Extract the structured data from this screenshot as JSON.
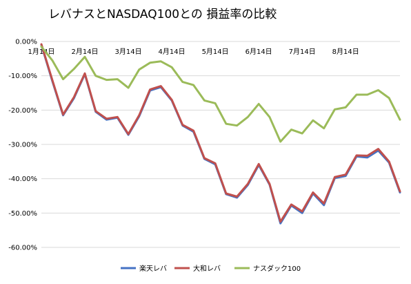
{
  "chart_data": {
    "type": "line",
    "title": "レバナスとNASDAQ100との 損益率の比較",
    "xlabel": "",
    "ylabel": "",
    "ylim": [
      -0.6,
      0
    ],
    "yticks": [
      0,
      -0.1,
      -0.2,
      -0.3,
      -0.4,
      -0.5,
      -0.6
    ],
    "ytick_labels": [
      "0.00%",
      "-10.00%",
      "-20.00%",
      "-30.00%",
      "-40.00%",
      "-50.00%",
      "-60.00%"
    ],
    "x_tick_labels": [
      "1月14日",
      "2月14日",
      "3月14日",
      "4月14日",
      "5月14日",
      "6月14日",
      "7月14日",
      "8月14日"
    ],
    "x_tick_index": [
      0,
      4,
      8,
      12,
      16,
      20,
      24,
      28
    ],
    "grid": true,
    "legend_position": "bottom",
    "series": [
      {
        "name": "楽天レバ",
        "color": "#4472C4",
        "values": [
          -0.01,
          -0.115,
          -0.215,
          -0.165,
          -0.095,
          -0.205,
          -0.228,
          -0.222,
          -0.272,
          -0.218,
          -0.143,
          -0.133,
          -0.172,
          -0.245,
          -0.263,
          -0.342,
          -0.358,
          -0.445,
          -0.455,
          -0.418,
          -0.36,
          -0.417,
          -0.53,
          -0.478,
          -0.5,
          -0.443,
          -0.477,
          -0.398,
          -0.392,
          -0.335,
          -0.338,
          -0.318,
          -0.353,
          -0.44
        ]
      },
      {
        "name": "大和レバ",
        "color": "#C0504D",
        "values": [
          -0.008,
          -0.112,
          -0.213,
          -0.162,
          -0.093,
          -0.203,
          -0.225,
          -0.22,
          -0.27,
          -0.215,
          -0.14,
          -0.13,
          -0.17,
          -0.243,
          -0.26,
          -0.34,
          -0.355,
          -0.443,
          -0.452,
          -0.415,
          -0.357,
          -0.415,
          -0.525,
          -0.475,
          -0.495,
          -0.44,
          -0.472,
          -0.395,
          -0.388,
          -0.332,
          -0.333,
          -0.313,
          -0.35,
          -0.437
        ]
      },
      {
        "name": "ナスダック100",
        "color": "#9BBB59",
        "values": [
          -0.015,
          -0.055,
          -0.11,
          -0.08,
          -0.045,
          -0.1,
          -0.112,
          -0.11,
          -0.135,
          -0.082,
          -0.062,
          -0.058,
          -0.075,
          -0.118,
          -0.127,
          -0.172,
          -0.18,
          -0.24,
          -0.245,
          -0.22,
          -0.182,
          -0.22,
          -0.292,
          -0.257,
          -0.268,
          -0.23,
          -0.253,
          -0.198,
          -0.192,
          -0.155,
          -0.155,
          -0.142,
          -0.165,
          -0.228
        ]
      }
    ]
  }
}
